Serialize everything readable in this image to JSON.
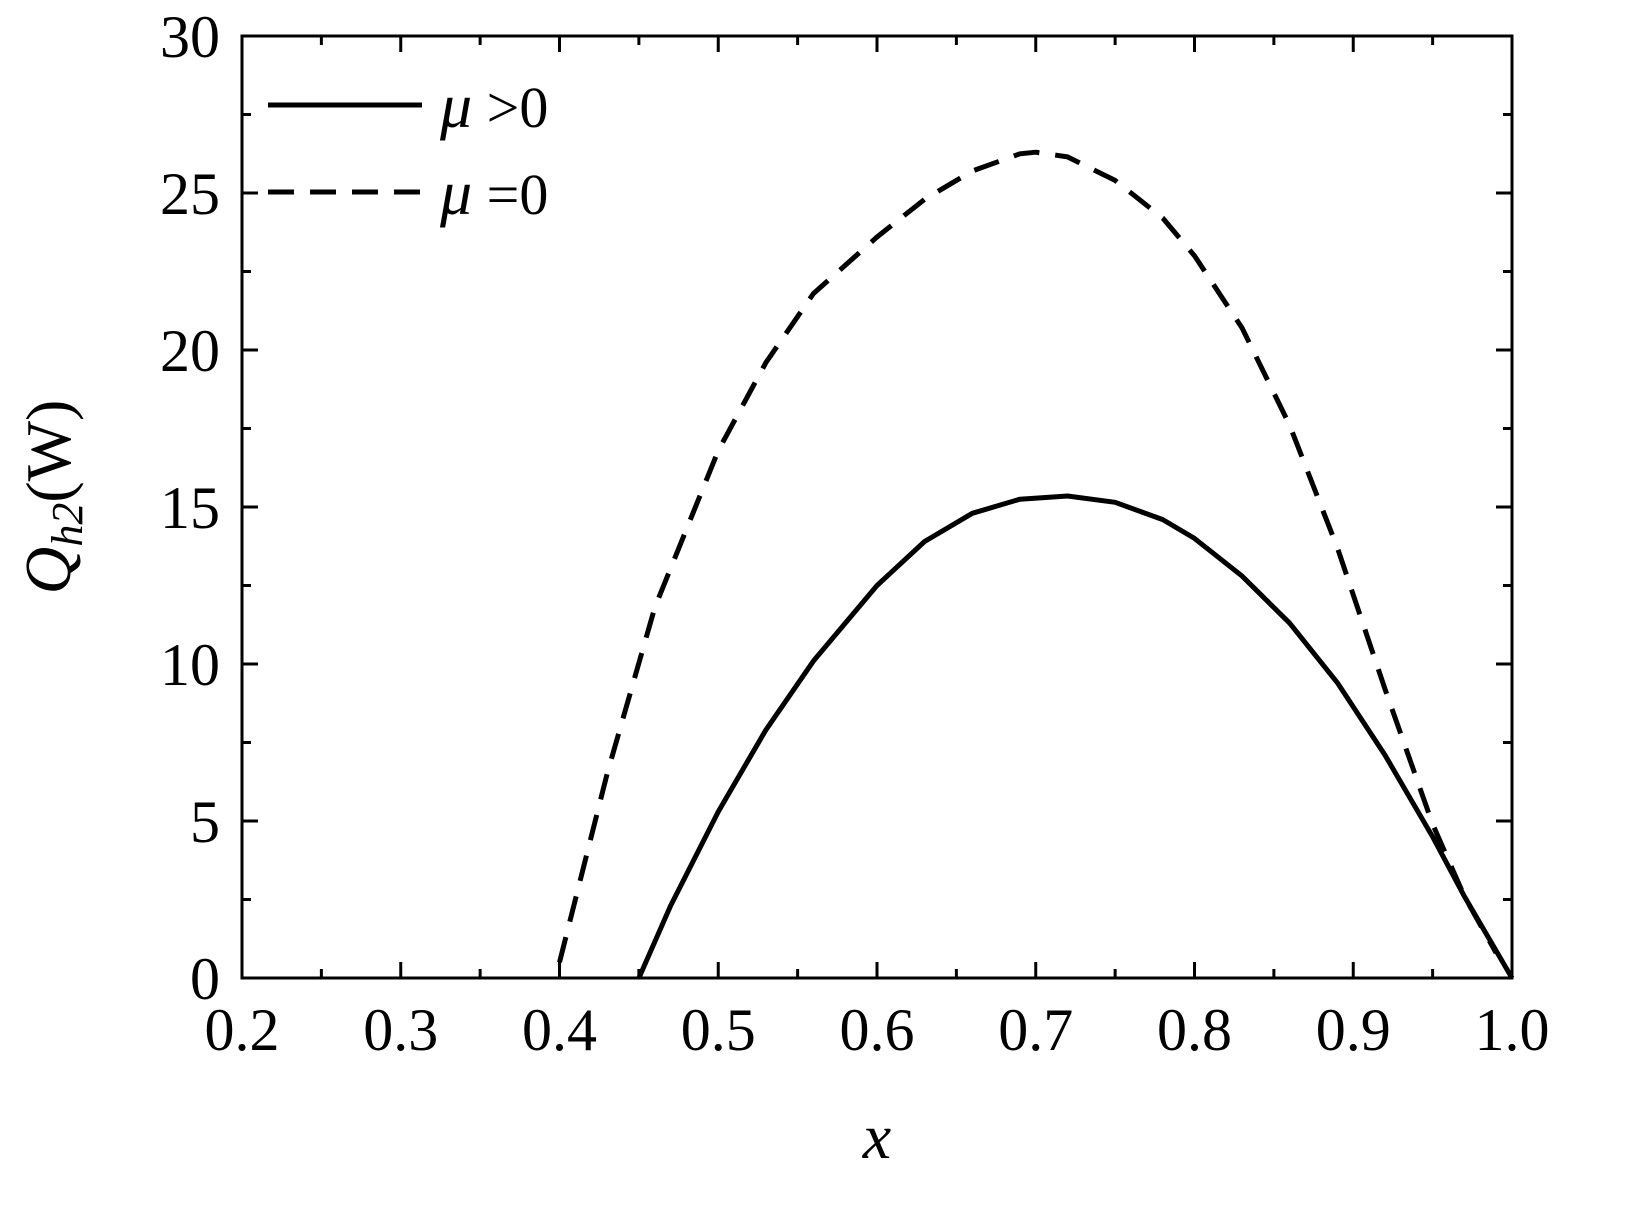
{
  "chart_data": {
    "type": "line",
    "title": "",
    "xlabel": "x",
    "ylabel": {
      "symbol": "Q",
      "subscript": "h2",
      "unit": "(W)"
    },
    "xlim": [
      0.2,
      1.0
    ],
    "ylim": [
      0,
      30
    ],
    "x_ticks": [
      0.2,
      0.3,
      0.4,
      0.5,
      0.6,
      0.7,
      0.8,
      0.9,
      1.0
    ],
    "x_tick_labels": [
      "0.2",
      "0.3",
      "0.4",
      "0.5",
      "0.6",
      "0.7",
      "0.8",
      "0.9",
      "1.0"
    ],
    "y_ticks": [
      0,
      5,
      10,
      15,
      20,
      25,
      30
    ],
    "y_tick_labels": [
      "0",
      "5",
      "10",
      "15",
      "20",
      "25",
      "30"
    ],
    "grid": false,
    "legend": "top-left",
    "series": [
      {
        "name": "μ >0",
        "name_symbol": "μ",
        "name_rest": " >0",
        "style": "solid",
        "color": "#000000",
        "points": [
          [
            0.45,
            0
          ],
          [
            0.47,
            2.3
          ],
          [
            0.5,
            5.3
          ],
          [
            0.53,
            7.9
          ],
          [
            0.56,
            10.1
          ],
          [
            0.6,
            12.5
          ],
          [
            0.63,
            13.9
          ],
          [
            0.66,
            14.8
          ],
          [
            0.69,
            15.25
          ],
          [
            0.72,
            15.35
          ],
          [
            0.75,
            15.15
          ],
          [
            0.78,
            14.6
          ],
          [
            0.8,
            14.0
          ],
          [
            0.83,
            12.8
          ],
          [
            0.86,
            11.3
          ],
          [
            0.89,
            9.4
          ],
          [
            0.92,
            7.1
          ],
          [
            0.95,
            4.5
          ],
          [
            0.97,
            2.6
          ],
          [
            1.0,
            0
          ]
        ]
      },
      {
        "name": "μ =0",
        "name_symbol": "μ",
        "name_rest": " =0",
        "style": "dashed",
        "color": "#000000",
        "points": [
          [
            0.4,
            0.5
          ],
          [
            0.43,
            6.5
          ],
          [
            0.46,
            11.8
          ],
          [
            0.5,
            16.8
          ],
          [
            0.53,
            19.6
          ],
          [
            0.56,
            21.8
          ],
          [
            0.6,
            23.6
          ],
          [
            0.63,
            24.8
          ],
          [
            0.66,
            25.7
          ],
          [
            0.69,
            26.25
          ],
          [
            0.7,
            26.3
          ],
          [
            0.72,
            26.15
          ],
          [
            0.75,
            25.4
          ],
          [
            0.78,
            24.2
          ],
          [
            0.8,
            23.0
          ],
          [
            0.83,
            20.7
          ],
          [
            0.86,
            17.6
          ],
          [
            0.89,
            13.7
          ],
          [
            0.92,
            9.2
          ],
          [
            0.95,
            4.9
          ],
          [
            0.97,
            2.6
          ],
          [
            0.99,
            0.8
          ]
        ]
      }
    ]
  }
}
